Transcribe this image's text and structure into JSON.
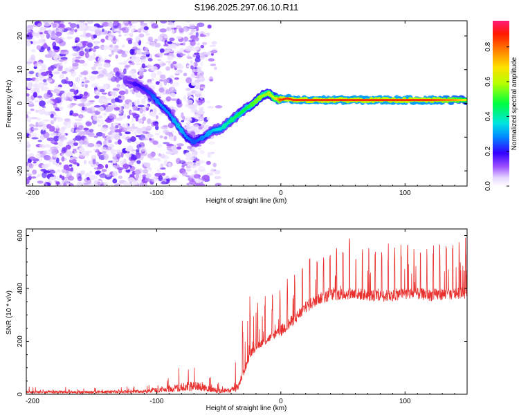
{
  "chart_data": [
    {
      "type": "heatmap",
      "title": "S196.2025.297.06.10.R11",
      "xlabel": "Height of straight line (km)",
      "ylabel": "Frequency (Hz)",
      "xlim": [
        -205,
        150
      ],
      "ylim": [
        -24.5,
        24.5
      ],
      "xticks": [
        -200,
        -100,
        0,
        100
      ],
      "yticks": [
        -20,
        -10,
        0,
        10,
        20
      ],
      "colorbar": {
        "label": "Normalized spectral amplitude",
        "range": [
          0,
          0.95
        ],
        "ticks": [
          0.0,
          0.2,
          0.4,
          0.6,
          0.8
        ],
        "tick_labels": [
          "0.0",
          "0.2",
          "0.4",
          "0.6",
          "0.8"
        ]
      },
      "ridge": {
        "x": [
          -125,
          -115,
          -105,
          -98,
          -90,
          -82,
          -76,
          -70,
          -62,
          -55,
          -48,
          -40,
          -33,
          -28,
          -22,
          -16,
          -10,
          -5,
          0,
          5,
          10,
          20,
          40,
          60,
          80,
          100,
          120,
          140,
          150
        ],
        "freq": [
          6.5,
          5.5,
          3,
          0,
          -3,
          -7,
          -10,
          -11.5,
          -10,
          -8,
          -7.5,
          -5,
          -3,
          -1.5,
          0,
          2,
          3,
          1.5,
          1,
          1.5,
          1,
          1,
          1,
          1,
          1,
          1,
          1,
          1,
          1
        ],
        "amplitude": [
          0.15,
          0.2,
          0.25,
          0.3,
          0.3,
          0.35,
          0.3,
          0.25,
          0.3,
          0.35,
          0.4,
          0.45,
          0.5,
          0.5,
          0.55,
          0.6,
          0.6,
          0.65,
          0.9,
          0.9,
          0.9,
          0.9,
          0.9,
          0.9,
          0.9,
          0.9,
          0.9,
          0.8,
          0.7
        ]
      }
    },
    {
      "type": "line",
      "title": "",
      "xlabel": "Height of straight line (km)",
      "ylabel": "SNR (10 * v/v)",
      "xlim": [
        -205,
        150
      ],
      "ylim": [
        0,
        625
      ],
      "xticks": [
        -200,
        -100,
        0,
        100
      ],
      "yticks": [
        0,
        200,
        400,
        600
      ],
      "color": "#e8312f",
      "envelope": {
        "x": [
          -205,
          -150,
          -110,
          -100,
          -90,
          -80,
          -70,
          -60,
          -50,
          -40,
          -35,
          -30,
          -25,
          -20,
          -10,
          0,
          10,
          20,
          30,
          40,
          50,
          60,
          70,
          80,
          90,
          100,
          110,
          120,
          130,
          140,
          150
        ],
        "base": [
          8,
          8,
          10,
          15,
          18,
          25,
          30,
          20,
          12,
          15,
          25,
          80,
          150,
          180,
          210,
          240,
          280,
          330,
          360,
          375,
          380,
          380,
          375,
          370,
          375,
          380,
          380,
          375,
          378,
          380,
          385
        ],
        "peak": [
          25,
          28,
          35,
          50,
          70,
          120,
          160,
          90,
          40,
          50,
          200,
          350,
          420,
          380,
          380,
          420,
          460,
          520,
          560,
          580,
          600,
          610,
          590,
          580,
          590,
          600,
          590,
          590,
          580,
          575,
          600
        ]
      }
    }
  ]
}
